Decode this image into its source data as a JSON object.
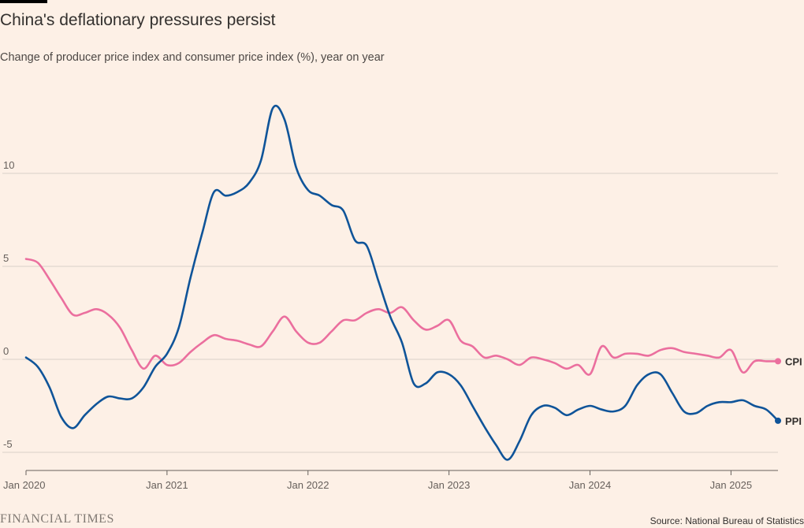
{
  "header": {
    "title": "China's deflationary pressures persist",
    "subtitle": "Change of producer price index and consumer price index (%), year on year"
  },
  "footer": {
    "brand": "FINANCIAL TIMES",
    "source": "Source: National Bureau of Statistics"
  },
  "colors": {
    "background": "#fdf0e6",
    "cpi": "#eb6f9e",
    "ppi": "#0f5499",
    "grid": "#d9cfc8"
  },
  "chart_data": {
    "type": "line",
    "title": "China's deflationary pressures persist",
    "subtitle": "Change of producer price index and consumer price index (%), year on year",
    "x_unit": "month",
    "x_start": "2020-01",
    "ylim": [
      -5.5,
      14
    ],
    "yticks": [
      -5,
      0,
      5,
      10
    ],
    "ytick_labels": [
      "-5",
      "0",
      "5",
      "10"
    ],
    "xtick_labels": [
      "Jan 2020",
      "Jan 2021",
      "Jan 2022",
      "Jan 2023",
      "Jan 2024",
      "Jan 2025"
    ],
    "xticks": [
      "2020-01",
      "2021-01",
      "2022-01",
      "2023-01",
      "2024-01",
      "2025-01"
    ],
    "x_end": "2025-05",
    "grid": true,
    "series": [
      {
        "name": "CPI",
        "color": "#eb6f9e",
        "dates": [
          "2020-01",
          "2020-02",
          "2020-03",
          "2020-04",
          "2020-05",
          "2020-06",
          "2020-07",
          "2020-08",
          "2020-09",
          "2020-10",
          "2020-11",
          "2020-12",
          "2021-01",
          "2021-02",
          "2021-03",
          "2021-04",
          "2021-05",
          "2021-06",
          "2021-07",
          "2021-08",
          "2021-09",
          "2021-10",
          "2021-11",
          "2021-12",
          "2022-01",
          "2022-02",
          "2022-03",
          "2022-04",
          "2022-05",
          "2022-06",
          "2022-07",
          "2022-08",
          "2022-09",
          "2022-10",
          "2022-11",
          "2022-12",
          "2023-01",
          "2023-02",
          "2023-03",
          "2023-04",
          "2023-05",
          "2023-06",
          "2023-07",
          "2023-08",
          "2023-09",
          "2023-10",
          "2023-11",
          "2023-12",
          "2024-01",
          "2024-02",
          "2024-03",
          "2024-04",
          "2024-05",
          "2024-06",
          "2024-07",
          "2024-08",
          "2024-09",
          "2024-10",
          "2024-11",
          "2024-12",
          "2025-01",
          "2025-02",
          "2025-03",
          "2025-04",
          "2025-05"
        ],
        "values": [
          5.4,
          5.2,
          4.3,
          3.3,
          2.4,
          2.5,
          2.7,
          2.4,
          1.7,
          0.5,
          -0.5,
          0.2,
          -0.3,
          -0.2,
          0.4,
          0.9,
          1.3,
          1.1,
          1.0,
          0.8,
          0.7,
          1.5,
          2.3,
          1.5,
          0.9,
          0.9,
          1.5,
          2.1,
          2.1,
          2.5,
          2.7,
          2.5,
          2.8,
          2.1,
          1.6,
          1.8,
          2.1,
          1.0,
          0.7,
          0.1,
          0.2,
          0.0,
          -0.3,
          0.1,
          0.0,
          -0.2,
          -0.5,
          -0.3,
          -0.8,
          0.7,
          0.1,
          0.3,
          0.3,
          0.2,
          0.5,
          0.6,
          0.4,
          0.3,
          0.2,
          0.1,
          0.5,
          -0.7,
          -0.1,
          -0.1,
          -0.1
        ]
      },
      {
        "name": "PPI",
        "color": "#0f5499",
        "dates": [
          "2020-01",
          "2020-02",
          "2020-03",
          "2020-04",
          "2020-05",
          "2020-06",
          "2020-07",
          "2020-08",
          "2020-09",
          "2020-10",
          "2020-11",
          "2020-12",
          "2021-01",
          "2021-02",
          "2021-03",
          "2021-04",
          "2021-05",
          "2021-06",
          "2021-07",
          "2021-08",
          "2021-09",
          "2021-10",
          "2021-11",
          "2021-12",
          "2022-01",
          "2022-02",
          "2022-03",
          "2022-04",
          "2022-05",
          "2022-06",
          "2022-07",
          "2022-08",
          "2022-09",
          "2022-10",
          "2022-11",
          "2022-12",
          "2023-01",
          "2023-02",
          "2023-03",
          "2023-04",
          "2023-05",
          "2023-06",
          "2023-07",
          "2023-08",
          "2023-09",
          "2023-10",
          "2023-11",
          "2023-12",
          "2024-01",
          "2024-02",
          "2024-03",
          "2024-04",
          "2024-05",
          "2024-06",
          "2024-07",
          "2024-08",
          "2024-09",
          "2024-10",
          "2024-11",
          "2024-12",
          "2025-01",
          "2025-02",
          "2025-03",
          "2025-04",
          "2025-05"
        ],
        "values": [
          0.1,
          -0.4,
          -1.5,
          -3.1,
          -3.7,
          -3.0,
          -2.4,
          -2.0,
          -2.1,
          -2.1,
          -1.5,
          -0.4,
          0.3,
          1.7,
          4.4,
          6.8,
          9.0,
          8.8,
          9.0,
          9.5,
          10.7,
          13.5,
          12.9,
          10.3,
          9.1,
          8.8,
          8.3,
          8.0,
          6.4,
          6.1,
          4.2,
          2.3,
          0.9,
          -1.3,
          -1.3,
          -0.7,
          -0.8,
          -1.4,
          -2.5,
          -3.6,
          -4.6,
          -5.4,
          -4.4,
          -3.0,
          -2.5,
          -2.6,
          -3.0,
          -2.7,
          -2.5,
          -2.7,
          -2.8,
          -2.5,
          -1.4,
          -0.8,
          -0.8,
          -1.8,
          -2.8,
          -2.9,
          -2.5,
          -2.3,
          -2.3,
          -2.2,
          -2.5,
          -2.7,
          -3.3
        ]
      }
    ]
  }
}
